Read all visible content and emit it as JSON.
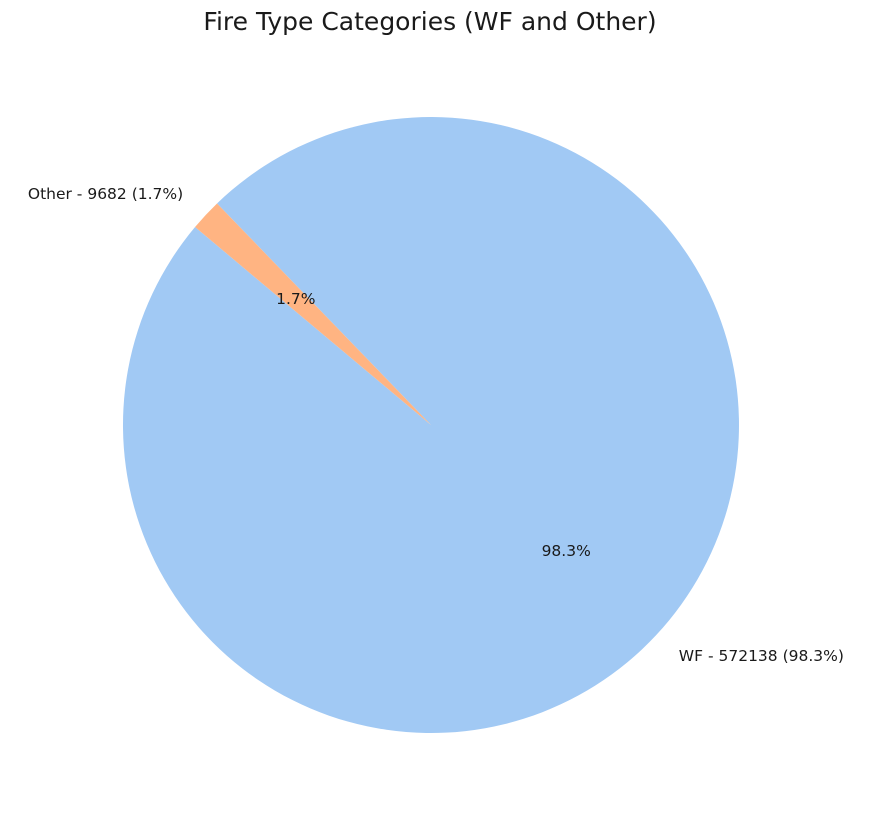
{
  "chart_data": {
    "type": "pie",
    "title": "Fire Type Categories (WF and Other)",
    "slices": [
      {
        "category": "WF",
        "value": 572138,
        "label": "WF - 572138 (98.3%)",
        "pct_label": "98.3%",
        "color": "#a1c9f4"
      },
      {
        "category": "Other",
        "value": 9682,
        "label": "Other - 9682 (1.7%)",
        "pct_label": "1.7%",
        "color": "#ffb482"
      }
    ],
    "start_angle_deg": 140,
    "direction": "counterclockwise",
    "legend": "none"
  }
}
